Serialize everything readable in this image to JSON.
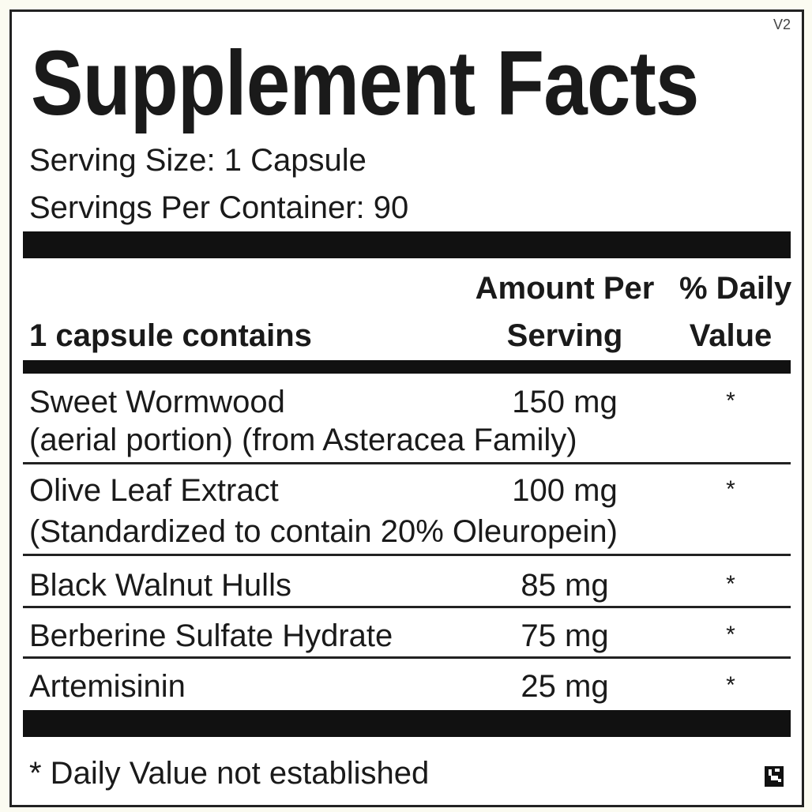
{
  "title": "Supplement Facts",
  "version": "V2",
  "serving_size": "Serving Size: 1 Capsule",
  "servings_per_container": "Servings Per Container: 90",
  "header": {
    "contains": "1 capsule contains",
    "amount_line1": "Amount Per",
    "amount_line2": "Serving",
    "dv_line1": "% Daily",
    "dv_line2": "Value"
  },
  "rows": [
    {
      "name": "Sweet Wormwood",
      "detail": "(aerial portion) (from Asteracea Family)",
      "amount": "150 mg",
      "dv": "*"
    },
    {
      "name": "Olive Leaf Extract",
      "detail": "(Standardized to contain 20% Oleuropein)",
      "amount": "100 mg",
      "dv": "*"
    },
    {
      "name": "Black Walnut Hulls",
      "amount": "85 mg",
      "dv": "*"
    },
    {
      "name": "Berberine Sulfate Hydrate",
      "amount": "75 mg",
      "dv": "*"
    },
    {
      "name": "Artemisinin",
      "amount": "25 mg",
      "dv": "*"
    }
  ],
  "footnote": "* Daily Value not established",
  "icons": {
    "corner": "qr-code-icon"
  }
}
